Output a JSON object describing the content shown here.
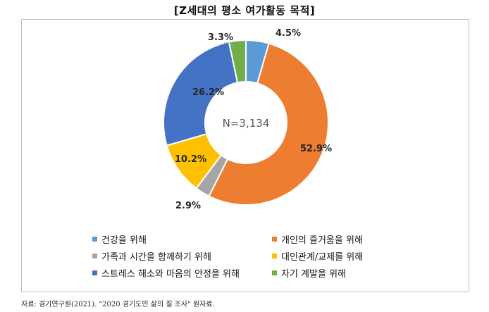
{
  "title": "[Z세대의 평소 여가활동 목적]",
  "source": "자료: 경기연구원(2021). \"2020 경기도민 삶의 질 조사\" 원자료.",
  "chart_data": {
    "type": "pie",
    "style": "donut",
    "center_label": "N=3,134",
    "legend_position": "bottom",
    "slices": [
      {
        "label": "건강을 위해",
        "value": 4.5,
        "value_label": "4.5%",
        "color": "#5B9BD5"
      },
      {
        "label": "개인의 즐거움을 위해",
        "value": 52.9,
        "value_label": "52.9%",
        "color": "#ED7D31"
      },
      {
        "label": "가족과 시간을 함께하기 위해",
        "value": 2.9,
        "value_label": "2.9%",
        "color": "#A5A5A5"
      },
      {
        "label": "대인관계/교제를 위해",
        "value": 10.2,
        "value_label": "10.2%",
        "color": "#FFC000"
      },
      {
        "label": "스트레스 해소와 마음의 안정을 위해",
        "value": 26.2,
        "value_label": "26.2%",
        "color": "#4472C4"
      },
      {
        "label": "자기 계발을 위해",
        "value": 3.3,
        "value_label": "3.3%",
        "color": "#70AD47"
      }
    ]
  }
}
